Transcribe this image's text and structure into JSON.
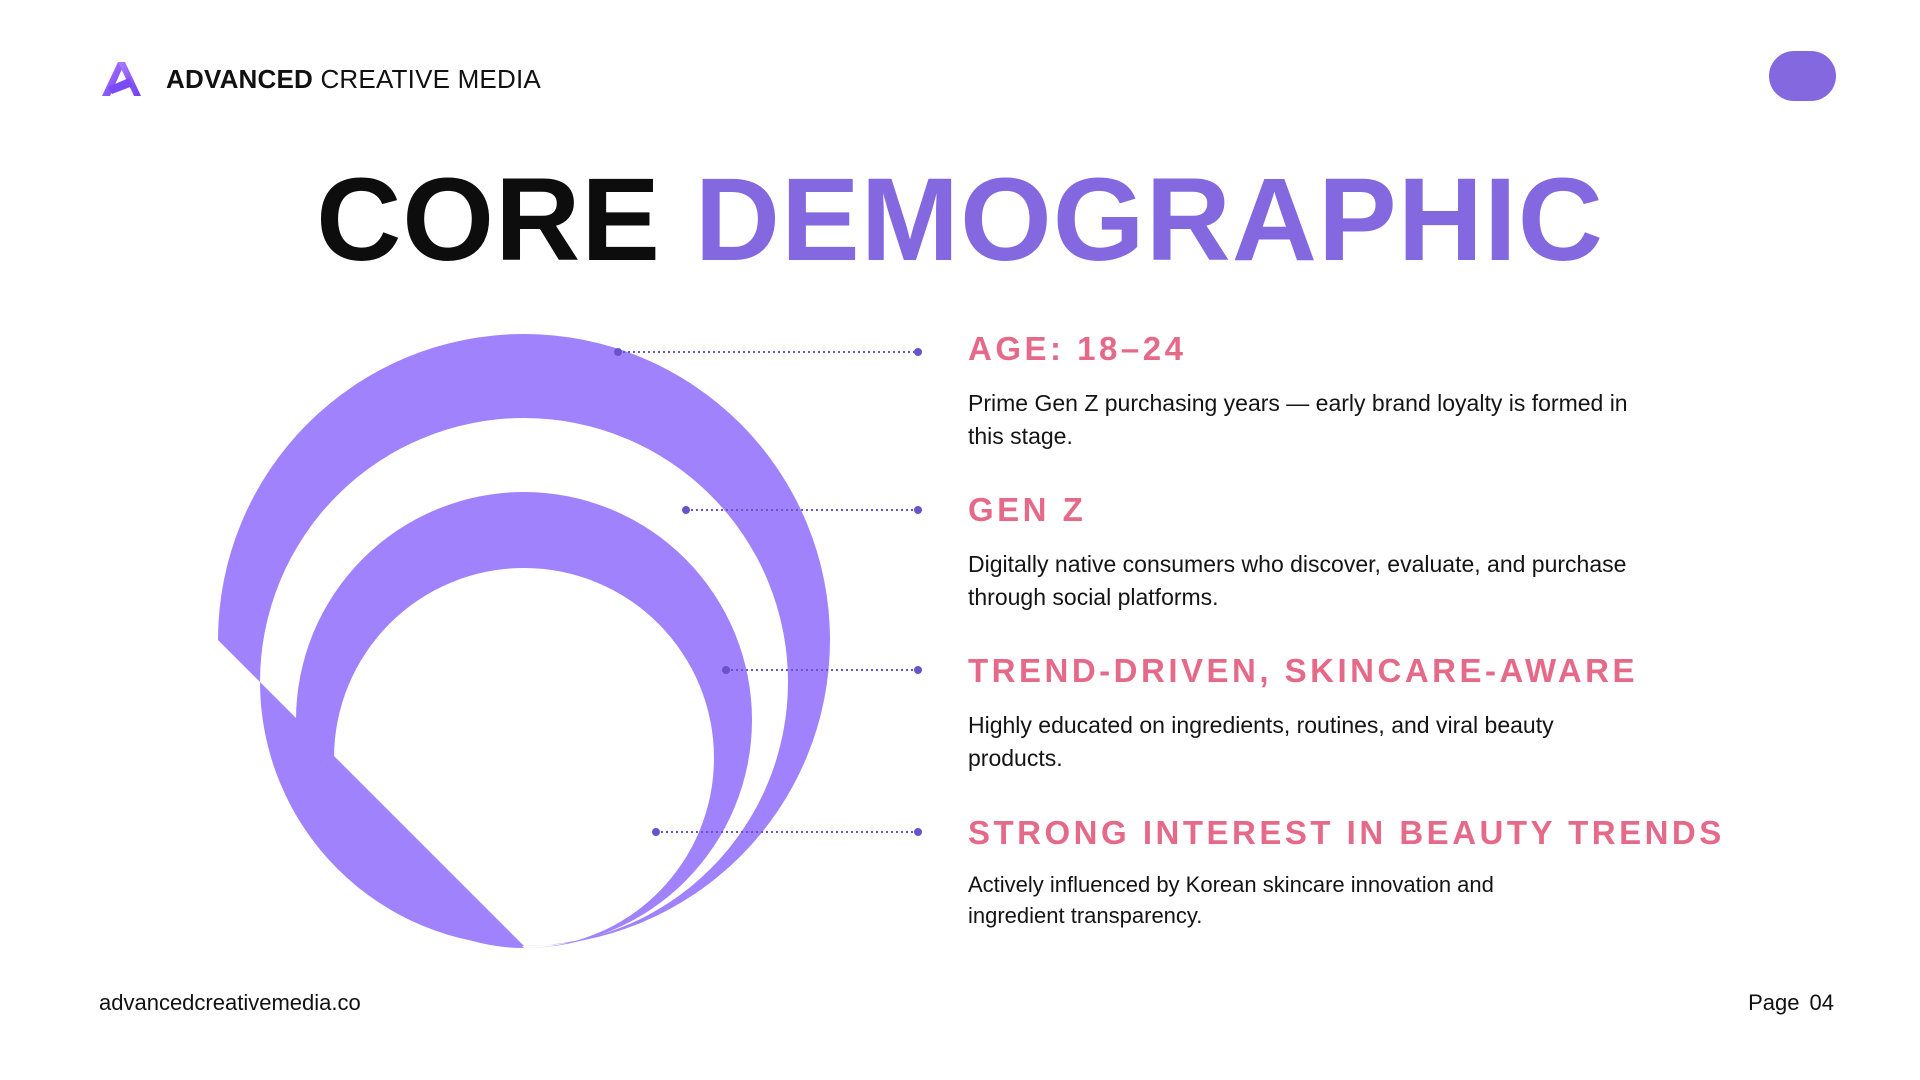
{
  "brand": {
    "name_bold": "ADVANCED",
    "name_light": "CREATIVE MEDIA",
    "logo_icon": "brand-logo-icon"
  },
  "title": {
    "part1": "CORE",
    "part2": "DEMOGRAPHIC"
  },
  "items": [
    {
      "heading": "AGE: 18–24",
      "description": "Prime Gen Z purchasing years — early brand loyalty is formed in this stage."
    },
    {
      "heading": "GEN Z",
      "description": "Digitally native consumers who discover, evaluate, and purchase through social platforms."
    },
    {
      "heading": "TREND-DRIVEN, SKINCARE-AWARE",
      "description": "Highly educated on ingredients, routines, and viral beauty products."
    },
    {
      "heading": "STRONG INTEREST IN BEAUTY TRENDS",
      "description": "Actively influenced by Korean skincare innovation and ingredient transparency."
    }
  ],
  "footer": {
    "url": "advancedcreativemedia.co",
    "page_label": "Page",
    "page_number": "04"
  },
  "colors": {
    "accent_purple": "#8468e0",
    "ring_purple": "#a082fc",
    "heading_pink": "#e56a8a",
    "connector": "#6a52c8"
  }
}
